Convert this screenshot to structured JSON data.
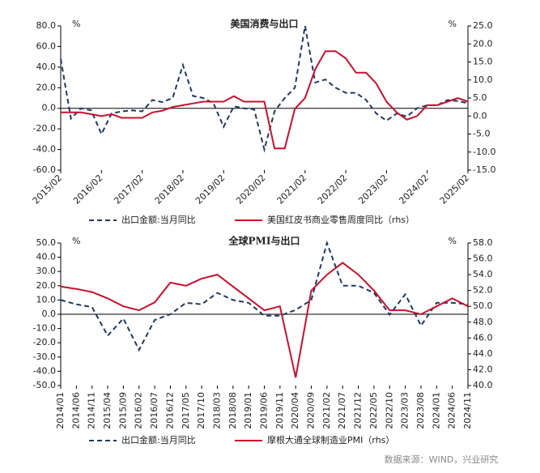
{
  "chart_data": [
    {
      "type": "line",
      "title": "美国消费与出口",
      "y_label": "%",
      "y2_label": "%",
      "categories": [
        "2015/02",
        null,
        null,
        null,
        "2016/02",
        null,
        null,
        null,
        "2017/02",
        null,
        null,
        null,
        "2018/02",
        null,
        null,
        null,
        "2019/02",
        null,
        null,
        null,
        "2020/02",
        null,
        null,
        null,
        "2021/02",
        null,
        null,
        null,
        "2022/02",
        null,
        null,
        null,
        "2023/02",
        null,
        null,
        null,
        "2024/02",
        null,
        null,
        null,
        "2025/02"
      ],
      "x_label_rotation": -45,
      "series": [
        {
          "name": "出口金额:当月同比",
          "color": "#1f3864",
          "style": "dashed",
          "axis": "y",
          "values": [
            48,
            -10,
            0,
            -2,
            -25,
            -5,
            -3,
            -2,
            -3,
            8,
            6,
            10,
            42,
            12,
            10,
            5,
            -18,
            2,
            0,
            -1,
            -40,
            -3,
            10,
            20,
            80,
            25,
            28,
            20,
            15,
            15,
            8,
            -5,
            -12,
            -5,
            -8,
            0,
            3,
            3,
            8,
            7,
            5
          ]
        },
        {
          "name": "美国红皮书商业零售周度同比（rhs）",
          "color": "#c8102e",
          "style": "solid",
          "axis": "y2",
          "values": [
            1,
            1,
            1,
            0.5,
            0,
            0.5,
            -0.5,
            -0.5,
            -0.5,
            1,
            1.5,
            2.5,
            3,
            3.5,
            4,
            4,
            4,
            5.5,
            4,
            4,
            4,
            -9,
            -9,
            2,
            5,
            13,
            18,
            18,
            16,
            12,
            12,
            9,
            4,
            1,
            -1,
            0,
            3,
            3,
            4,
            5,
            4
          ]
        }
      ],
      "ylim": [
        -60,
        80
      ],
      "yticks": [
        {
          "value": -60,
          "label": "-60.0"
        },
        {
          "value": -40,
          "label": "-40.0"
        },
        {
          "value": -20,
          "label": "-20.0"
        },
        {
          "value": 0,
          "label": "0.0"
        },
        {
          "value": 20,
          "label": "20.0"
        },
        {
          "value": 40,
          "label": "40.0"
        },
        {
          "value": 60,
          "label": "60.0"
        },
        {
          "value": 80,
          "label": "80.0"
        }
      ],
      "y2lim": [
        -15,
        25
      ],
      "y2ticks": [
        {
          "value": -15,
          "label": "-15.0"
        },
        {
          "value": -10,
          "label": "-10.0"
        },
        {
          "value": -5,
          "label": "-5.0"
        },
        {
          "value": 0,
          "label": "0.0"
        },
        {
          "value": 5,
          "label": "5.0"
        },
        {
          "value": 10,
          "label": "10.0"
        },
        {
          "value": 15,
          "label": "15.0"
        },
        {
          "value": 20,
          "label": "20.0"
        },
        {
          "value": 25,
          "label": "25.0"
        }
      ]
    },
    {
      "type": "line",
      "title": "全球PMI与出口",
      "y_label": "%",
      "y2_label": "%",
      "categories": [
        "2014/01",
        "2014/06",
        "2014/11",
        "2015/04",
        "2015/09",
        "2016/02",
        "2016/07",
        "2016/12",
        "2017/05",
        "2017/10",
        "2018/03",
        "2018/08",
        "2019/01",
        "2019/06",
        "2019/11",
        "2020/04",
        "2020/09",
        "2021/02",
        "2021/07",
        "2021/12",
        "2022/05",
        "2022/10",
        "2023/03",
        "2023/08",
        "2024/01",
        "2024/06",
        "2024/11"
      ],
      "x_label_rotation": -90,
      "series": [
        {
          "name": "出口金额:当月同比",
          "color": "#1f3864",
          "style": "dashed",
          "axis": "y",
          "values": [
            10,
            7,
            5,
            -15,
            -3,
            -25,
            -4,
            0,
            8,
            7,
            15,
            10,
            8,
            -1,
            -1,
            3,
            10,
            50,
            20,
            20,
            15,
            -0.3,
            14,
            -8,
            8,
            8,
            7
          ]
        },
        {
          "name": "摩根大通全球制造业PMI（rhs）",
          "color": "#c8102e",
          "style": "solid",
          "axis": "y2",
          "values": [
            52.5,
            52.2,
            51.8,
            51,
            50,
            49.5,
            50.5,
            53,
            52.6,
            53.5,
            54,
            52.5,
            51,
            49.5,
            50,
            41,
            52,
            54,
            55.5,
            54,
            52,
            49.5,
            49.5,
            49,
            50,
            51,
            50
          ]
        }
      ],
      "ylim": [
        -50,
        50
      ],
      "yticks": [
        {
          "value": -50,
          "label": "-50.0"
        },
        {
          "value": -40,
          "label": "-40.0"
        },
        {
          "value": -30,
          "label": "-30.0"
        },
        {
          "value": -20,
          "label": "-20.0"
        },
        {
          "value": -10,
          "label": "-10.0"
        },
        {
          "value": 0,
          "label": "0.0"
        },
        {
          "value": 10,
          "label": "10.0"
        },
        {
          "value": 20,
          "label": "20.0"
        },
        {
          "value": 30,
          "label": "30.0"
        },
        {
          "value": 40,
          "label": "40.0"
        },
        {
          "value": 50,
          "label": "50.0"
        }
      ],
      "y2lim": [
        40,
        58
      ],
      "y2ticks": [
        {
          "value": 40,
          "label": "40.0"
        },
        {
          "value": 42,
          "label": "42.0"
        },
        {
          "value": 44,
          "label": "44.0"
        },
        {
          "value": 46,
          "label": "46.0"
        },
        {
          "value": 48,
          "label": "48.0"
        },
        {
          "value": 50,
          "label": "50.0"
        },
        {
          "value": 52,
          "label": "52.0"
        },
        {
          "value": 54,
          "label": "54.0"
        },
        {
          "value": 56,
          "label": "56.0"
        },
        {
          "value": 58,
          "label": "58.0"
        }
      ]
    }
  ],
  "source": "数据来源：WIND，兴业研究"
}
